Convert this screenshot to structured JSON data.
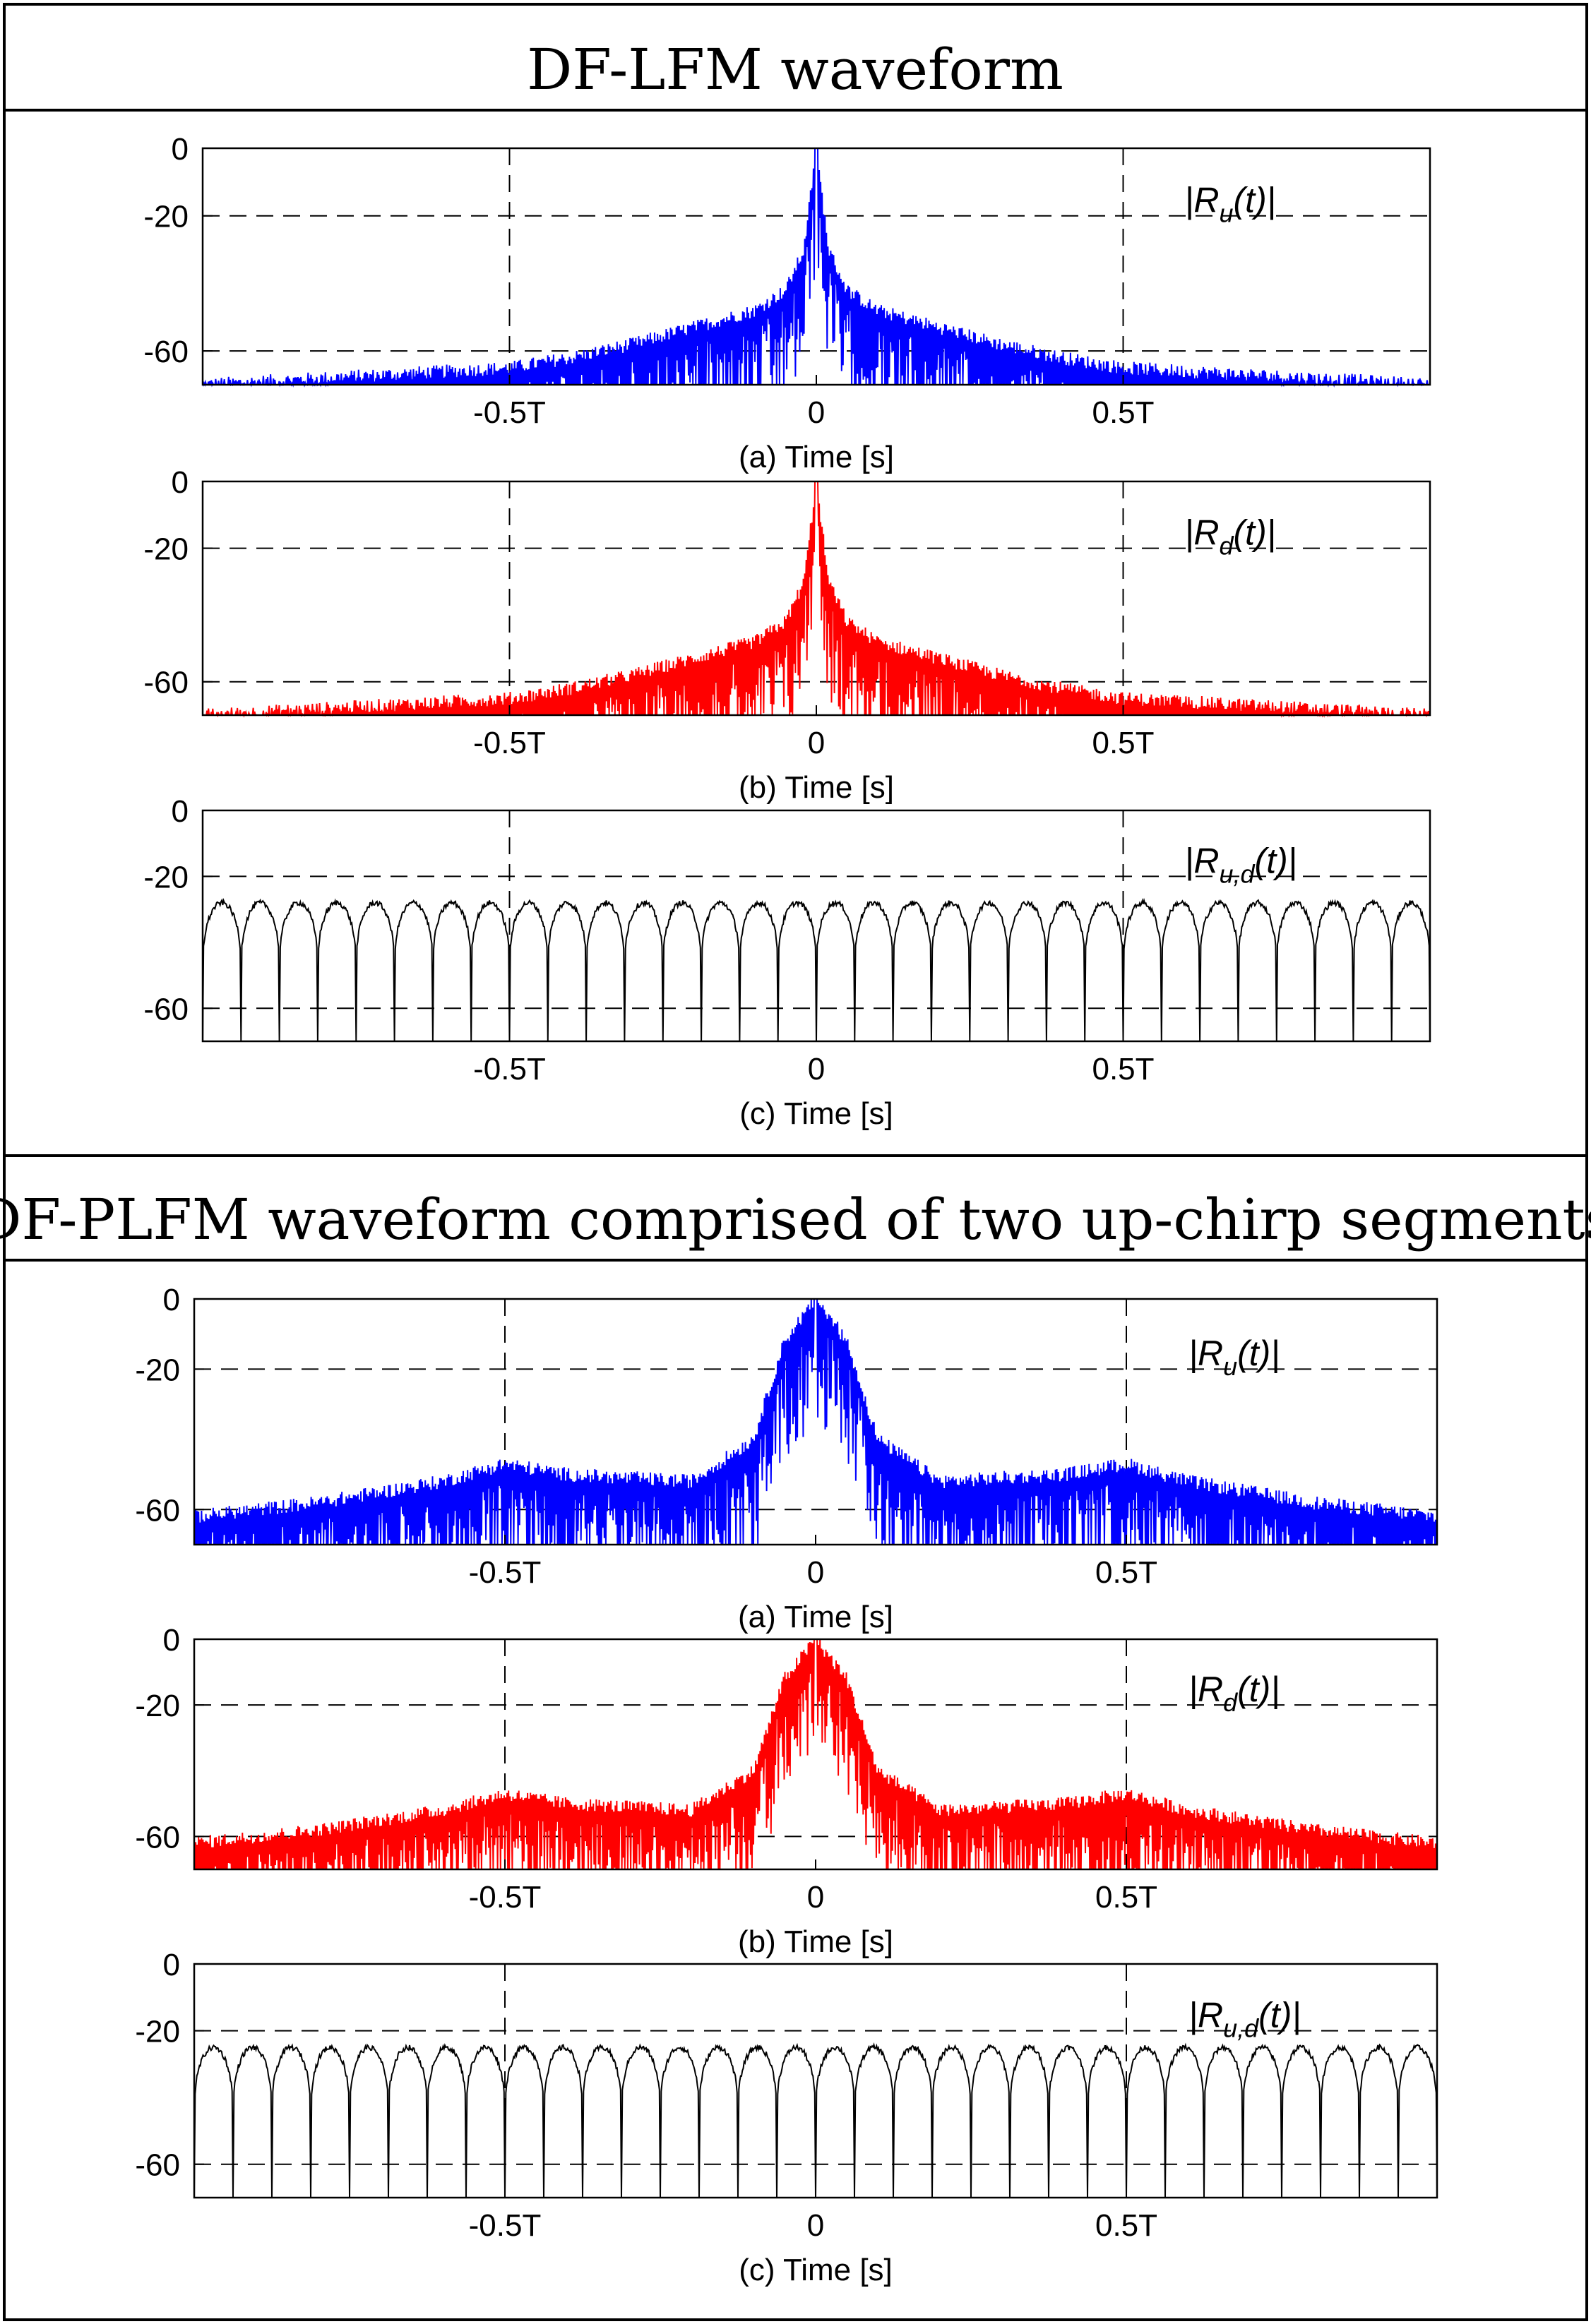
{
  "sections": [
    {
      "title": "DF-LFM waveform",
      "panels": [
        {
          "series_label": "|Ru(t)|",
          "color": "#0000ff",
          "xlabel": "(a) Time [s]"
        },
        {
          "series_label": "|Rd(t)|",
          "color": "#ff0000",
          "xlabel": "(b) Time [s]"
        },
        {
          "series_label": "|Ru,d(t)|",
          "color": "#000000",
          "xlabel": "(c) Time [s]"
        }
      ]
    },
    {
      "title": "DF-PLFM waveform comprised of two up-chirp segments",
      "panels": [
        {
          "series_label": "|Ru(t)|",
          "color": "#0000ff",
          "xlabel": "(a) Time [s]"
        },
        {
          "series_label": "|Rd(t)|",
          "color": "#ff0000",
          "xlabel": "(b) Time [s]"
        },
        {
          "series_label": "|Ru,d(t)|",
          "color": "#000000",
          "xlabel": "(c) Time [s]"
        }
      ]
    }
  ],
  "chart_data": [
    {
      "type": "line",
      "section": "DF-LFM waveform",
      "panel": "a",
      "series": [
        {
          "name": "|Ru(t)|",
          "x": [
            -1.0,
            -0.9,
            -0.8,
            -0.7,
            -0.6,
            -0.5,
            -0.4,
            -0.3,
            -0.2,
            -0.1,
            -0.05,
            -0.02,
            0,
            0.02,
            0.05,
            0.1,
            0.2,
            0.3,
            0.4,
            0.5,
            0.6,
            0.7,
            0.8,
            0.9,
            1.0
          ],
          "y": [
            -70,
            -69,
            -68,
            -67,
            -66,
            -65,
            -62,
            -58,
            -53,
            -48,
            -42,
            -30,
            0,
            -30,
            -42,
            -48,
            -53,
            -58,
            -62,
            -65,
            -66,
            -67,
            -68,
            -69,
            -70
          ]
        }
      ],
      "xlabel": "(a) Time [s]",
      "ylim": [
        -70,
        0
      ],
      "xlim": [
        -1,
        1
      ],
      "yticks": [
        0,
        -20,
        -60
      ],
      "xticks": [
        -0.5,
        0,
        0.5
      ],
      "xticklabels": [
        "-0.5T",
        "0",
        "0.5T"
      ],
      "grid": "dashed"
    },
    {
      "type": "line",
      "section": "DF-LFM waveform",
      "panel": "b",
      "series": [
        {
          "name": "|Rd(t)|",
          "x": [
            -1.0,
            -0.9,
            -0.8,
            -0.7,
            -0.6,
            -0.5,
            -0.4,
            -0.3,
            -0.2,
            -0.1,
            -0.05,
            -0.02,
            0,
            0.02,
            0.05,
            0.1,
            0.2,
            0.3,
            0.4,
            0.5,
            0.6,
            0.7,
            0.8,
            0.9,
            1.0
          ],
          "y": [
            -70,
            -69,
            -68,
            -67,
            -66,
            -65,
            -62,
            -58,
            -53,
            -48,
            -42,
            -30,
            0,
            -30,
            -42,
            -48,
            -53,
            -58,
            -62,
            -65,
            -66,
            -67,
            -68,
            -69,
            -70
          ]
        }
      ],
      "xlabel": "(b) Time [s]",
      "ylim": [
        -70,
        0
      ],
      "xlim": [
        -1,
        1
      ],
      "yticks": [
        0,
        -20,
        -60
      ],
      "xticks": [
        -0.5,
        0,
        0.5
      ],
      "xticklabels": [
        "-0.5T",
        "0",
        "0.5T"
      ],
      "grid": "dashed"
    },
    {
      "type": "line",
      "section": "DF-LFM waveform",
      "panel": "c",
      "series": [
        {
          "name": "|Ru,d(t)|",
          "lobe_count": 32,
          "lobe_peak_db": -28,
          "null_db": -70
        }
      ],
      "xlabel": "(c) Time [s]",
      "ylim": [
        -70,
        0
      ],
      "xlim": [
        -1,
        1
      ],
      "yticks": [
        0,
        -20,
        -60
      ],
      "xticks": [
        -0.5,
        0,
        0.5
      ],
      "xticklabels": [
        "-0.5T",
        "0",
        "0.5T"
      ],
      "grid": "dashed"
    },
    {
      "type": "line",
      "section": "DF-PLFM waveform comprised of two up-chirp segments",
      "panel": "a",
      "series": [
        {
          "name": "|Ru(t)|",
          "x": [
            -1.0,
            -0.8,
            -0.6,
            -0.5,
            -0.4,
            -0.2,
            -0.1,
            -0.05,
            0,
            0.05,
            0.1,
            0.2,
            0.4,
            0.5,
            0.6,
            0.8,
            1.0
          ],
          "y": [
            -62,
            -58,
            -52,
            -47,
            -50,
            -52,
            -40,
            -12,
            0,
            -12,
            -40,
            -52,
            -50,
            -47,
            -52,
            -58,
            -62
          ]
        }
      ],
      "xlabel": "(a) Time [s]",
      "ylim": [
        -70,
        0
      ],
      "xlim": [
        -1,
        1
      ],
      "yticks": [
        0,
        -20,
        -60
      ],
      "xticks": [
        -0.5,
        0,
        0.5
      ],
      "xticklabels": [
        "-0.5T",
        "0",
        "0.5T"
      ],
      "grid": "dashed"
    },
    {
      "type": "line",
      "section": "DF-PLFM waveform comprised of two up-chirp segments",
      "panel": "b",
      "series": [
        {
          "name": "|Rd(t)|",
          "x": [
            -1.0,
            -0.8,
            -0.6,
            -0.5,
            -0.4,
            -0.2,
            -0.1,
            -0.05,
            0,
            0.05,
            0.1,
            0.2,
            0.4,
            0.5,
            0.6,
            0.8,
            1.0
          ],
          "y": [
            -62,
            -58,
            -52,
            -47,
            -50,
            -52,
            -40,
            -12,
            0,
            -12,
            -40,
            -52,
            -50,
            -47,
            -52,
            -58,
            -62
          ]
        }
      ],
      "xlabel": "(b) Time [s]",
      "ylim": [
        -70,
        0
      ],
      "xlim": [
        -1,
        1
      ],
      "yticks": [
        0,
        -20,
        -60
      ],
      "xticks": [
        -0.5,
        0,
        0.5
      ],
      "xticklabels": [
        "-0.5T",
        "0",
        "0.5T"
      ],
      "grid": "dashed"
    },
    {
      "type": "line",
      "section": "DF-PLFM waveform comprised of two up-chirp segments",
      "panel": "c",
      "series": [
        {
          "name": "|Ru,d(t)|",
          "lobe_count": 32,
          "lobe_peak_db": -25,
          "null_db": -70
        }
      ],
      "xlabel": "(c) Time [s]",
      "ylim": [
        -70,
        0
      ],
      "xlim": [
        -1,
        1
      ],
      "yticks": [
        0,
        -20,
        -60
      ],
      "xticks": [
        -0.5,
        0,
        0.5
      ],
      "xticklabels": [
        "-0.5T",
        "0",
        "0.5T"
      ],
      "grid": "dashed"
    }
  ]
}
